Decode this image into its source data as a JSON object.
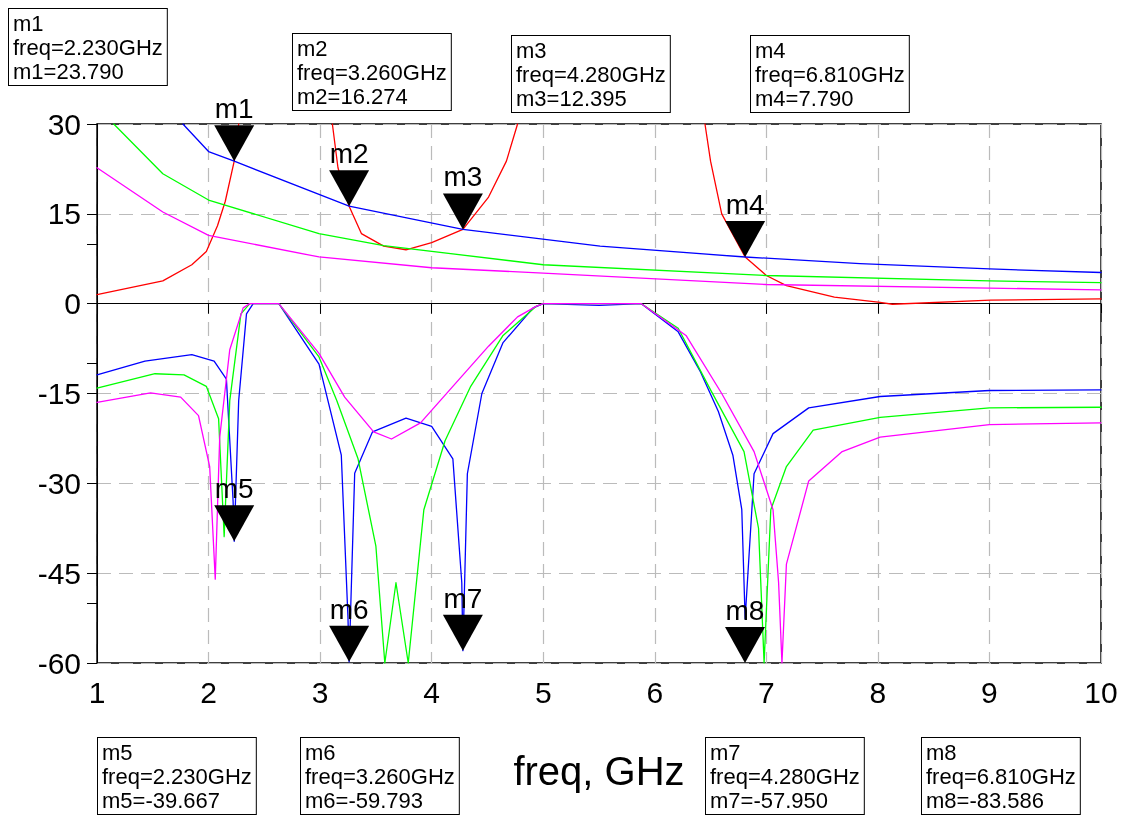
{
  "chart_data": {
    "type": "line",
    "xlabel": "freq, GHz",
    "xlim": [
      1,
      10
    ],
    "xticks": [
      1,
      2,
      3,
      4,
      5,
      6,
      7,
      8,
      9,
      10
    ],
    "ylim": [
      -60,
      30
    ],
    "yticks": [
      -60,
      -45,
      -30,
      -15,
      0,
      15,
      30
    ],
    "grid": true,
    "marker": "none",
    "line_style": "solid",
    "series": [
      {
        "color": "#ff0000",
        "x": [
          1,
          1.59,
          1.85,
          1.98,
          2.08,
          2.15,
          2.23,
          2.27,
          2.7,
          3.11,
          3.16,
          3.26,
          3.37,
          3.57,
          3.77,
          4.0,
          4.28,
          4.51,
          4.67,
          4.77,
          5.6,
          6.45,
          6.5,
          6.6,
          6.81,
          7.0,
          7.18,
          7.61,
          8.02,
          8.13,
          9.01,
          10
        ],
        "values": [
          1.5,
          3.8,
          6.5,
          8.7,
          13,
          17.1,
          23.79,
          30,
          null,
          30,
          22.7,
          16.274,
          11.7,
          9.6,
          9.0,
          10.2,
          12.395,
          17.8,
          23.8,
          30,
          null,
          30,
          23.8,
          15.0,
          7.79,
          4.7,
          3.0,
          1.1,
          0.2,
          -0.1,
          0.6,
          0.8
        ]
      },
      {
        "color": "#0000ff",
        "x": [
          1.77,
          2.0,
          2.23,
          3.26,
          4.28,
          5.51,
          6.81,
          7.84,
          9.0,
          10
        ],
        "values": [
          30,
          25.4,
          23.79,
          16.274,
          12.395,
          9.6,
          7.79,
          6.7,
          5.8,
          5.2
        ]
      },
      {
        "color": "#00ff00",
        "x": [
          1.15,
          1.59,
          2.0,
          2.99,
          3.57,
          5.0,
          7.0,
          9.0,
          10
        ],
        "values": [
          30,
          21.7,
          17.3,
          11.7,
          9.7,
          6.5,
          4.7,
          3.8,
          3.5
        ]
      },
      {
        "color": "#ff00ff",
        "x": [
          1,
          1.59,
          2.0,
          2.99,
          4.0,
          5.0,
          7.0,
          9.0,
          10
        ],
        "values": [
          22.7,
          15.3,
          11.4,
          7.8,
          6.0,
          5.1,
          3.2,
          2.6,
          2.3
        ]
      },
      {
        "color": "#0000ff",
        "x": [
          1,
          1.43,
          1.85,
          2.05,
          2.16,
          2.22,
          2.23,
          2.27,
          2.34,
          2.4,
          2.63,
          2.99,
          3.19,
          3.25,
          3.26,
          3.31,
          3.47,
          3.77,
          4.0,
          4.19,
          4.27,
          4.28,
          4.32,
          4.45,
          4.64,
          4.91,
          5.0,
          5.5,
          5.88,
          6.21,
          6.41,
          6.57,
          6.7,
          6.78,
          6.81,
          6.89,
          7.06,
          7.38,
          8.02,
          9.0,
          10
        ],
        "values": [
          -11.9,
          -9.6,
          -8.5,
          -9.6,
          -12.6,
          -33,
          -39.667,
          -16.2,
          -1.7,
          0,
          0,
          -10.1,
          -25.3,
          -52.6,
          -59.793,
          -28.3,
          -21.4,
          -19.1,
          -20.5,
          -25.9,
          -46.6,
          -57.95,
          -28.4,
          -15.0,
          -6.5,
          -0.7,
          0,
          -0.3,
          0,
          -4.7,
          -11.4,
          -18.0,
          -25.3,
          -34.4,
          -52.6,
          -28.4,
          -21.7,
          -17.4,
          -15.5,
          -14.5,
          -14.4
        ]
      },
      {
        "color": "#00ff00",
        "x": [
          1,
          1.52,
          1.78,
          1.98,
          2.09,
          2.14,
          2.19,
          2.29,
          2.37,
          2.63,
          2.99,
          3.15,
          3.34,
          3.5,
          3.58,
          3.68,
          3.79,
          3.93,
          4.12,
          4.35,
          4.64,
          4.94,
          5.0,
          5.88,
          6.21,
          6.5,
          6.8,
          6.93,
          6.98,
          7.04,
          7.18,
          7.42,
          8.02,
          9.0,
          10
        ],
        "values": [
          -14.1,
          -11.7,
          -11.9,
          -13.8,
          -19.2,
          -38.9,
          -16.2,
          -1.7,
          0,
          0,
          -8.9,
          -16.2,
          -25.9,
          -40.5,
          -60,
          -46.6,
          -60,
          -34.4,
          -22.9,
          -13.8,
          -5.3,
          -0.4,
          0,
          0,
          -4.1,
          -14.4,
          -24.7,
          -37.5,
          -60,
          -34.4,
          -27.2,
          -21.1,
          -19.0,
          -17.4,
          -17.3
        ]
      },
      {
        "color": "#ff00ff",
        "x": [
          1,
          1.48,
          1.75,
          1.91,
          2.01,
          2.06,
          2.1,
          2.19,
          2.31,
          2.37,
          2.63,
          2.99,
          3.22,
          3.48,
          3.64,
          3.9,
          4.19,
          4.51,
          4.77,
          4.94,
          5.0,
          5.88,
          6.28,
          6.6,
          6.89,
          7.06,
          7.11,
          7.14,
          7.18,
          7.38,
          7.68,
          8.02,
          9.0,
          10
        ],
        "values": [
          -16.5,
          -14.9,
          -15.6,
          -18.7,
          -27.2,
          -46,
          -22.3,
          -7.7,
          -0.7,
          0,
          0,
          -8.3,
          -15.6,
          -21.4,
          -22.6,
          -19.9,
          -13.8,
          -7.1,
          -2.2,
          -0.4,
          0,
          0,
          -5.3,
          -15.0,
          -24.7,
          -34.4,
          -46.6,
          -60,
          -43.5,
          -29.6,
          -24.7,
          -22.3,
          -20.2,
          -19.9
        ]
      }
    ],
    "annotations": [
      "m1\nfreq=2.230GHz\nm1=23.790",
      "m2\nfreq=3.260GHz\nm2=16.274",
      "m3\nfreq=4.280GHz\nm3=12.395",
      "m4\nfreq=6.810GHz\nm4=7.790",
      "m5\nfreq=2.230GHz\nm5=-39.667",
      "m6\nfreq=3.260GHz\nm6=-59.793",
      "m7\nfreq=4.280GHz\nm7=-57.950",
      "m8\nfreq=6.810GHz\nm8=-83.586",
      {
        "text": "m1",
        "x": 2.23,
        "y": 23.79
      },
      {
        "text": "m2",
        "x": 3.26,
        "y": 16.274
      },
      {
        "text": "m3",
        "x": 4.28,
        "y": 12.395
      },
      {
        "text": "m4",
        "x": 6.81,
        "y": 7.79
      },
      {
        "text": "m5",
        "x": 2.23,
        "y": -39.667
      },
      {
        "text": "m6",
        "x": 3.26,
        "y": -59.793
      },
      {
        "text": "m7",
        "x": 4.28,
        "y": -57.95
      },
      "m8"
    ]
  }
}
